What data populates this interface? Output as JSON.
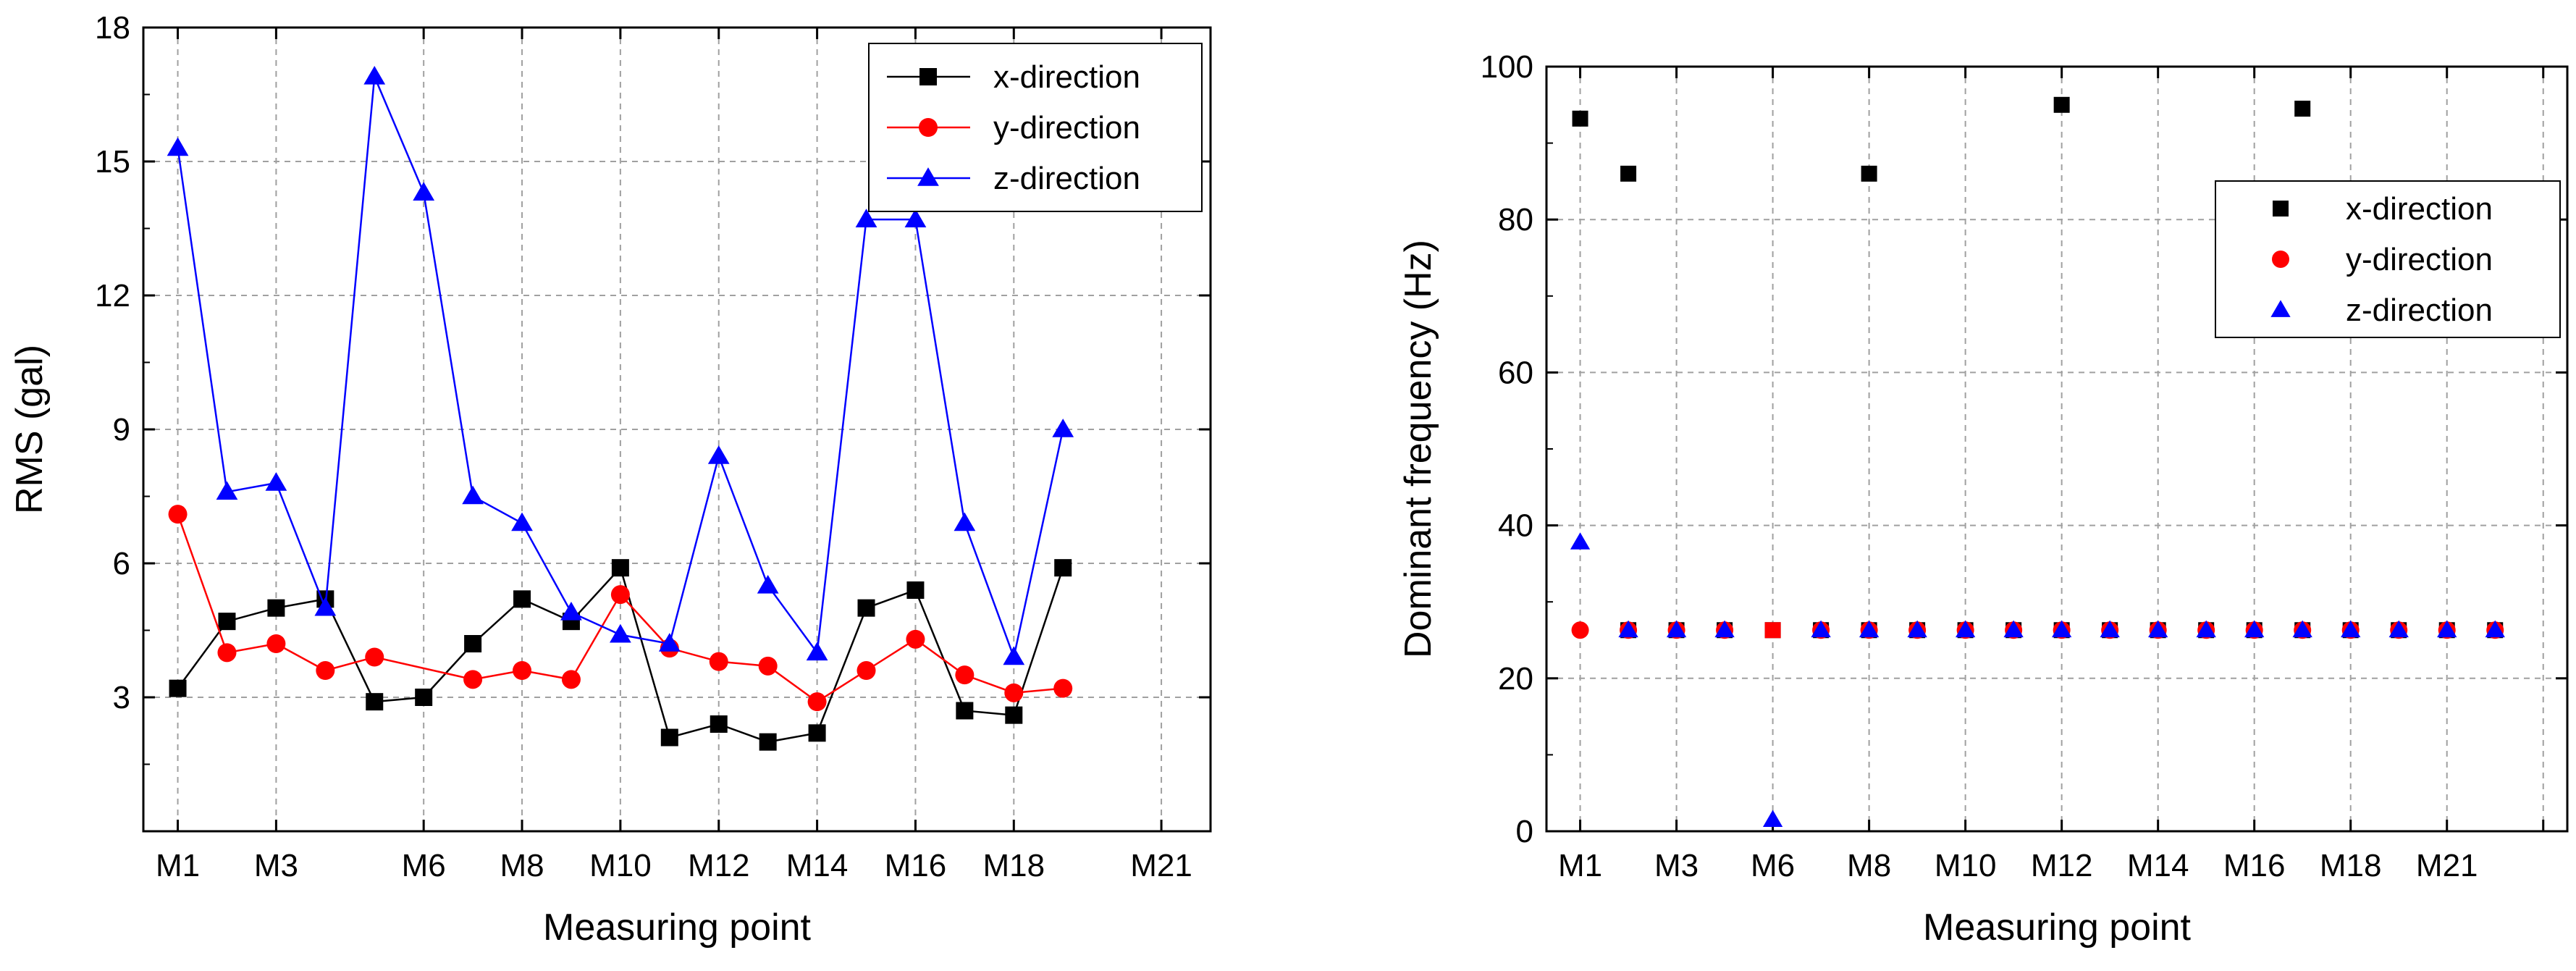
{
  "chart_data": [
    {
      "type": "line",
      "title": "",
      "xlabel": "Measuring point",
      "ylabel": "RMS (gal)",
      "ylim": [
        0,
        18
      ],
      "yticks": [
        3,
        6,
        9,
        12,
        15,
        18
      ],
      "xlim": [
        0.3,
        22
      ],
      "xticks": [
        1,
        3,
        6,
        8,
        10,
        12,
        14,
        16,
        18,
        21
      ],
      "xtick_labels": [
        "M1",
        "M3",
        "M6",
        "M8",
        "M10",
        "M12",
        "M14",
        "M16",
        "M18",
        "M21"
      ],
      "grid": true,
      "legend_position": "top-right",
      "legend": [
        "x-direction",
        "y-direction",
        "z-direction"
      ],
      "x": [
        1,
        2,
        3,
        4,
        5,
        6,
        7,
        8,
        9,
        10,
        11,
        12,
        13,
        14,
        15,
        16,
        17,
        18,
        19,
        20
      ],
      "series": [
        {
          "name": "x-direction",
          "color": "#000000",
          "marker": "square",
          "values": [
            3.2,
            4.7,
            5.0,
            5.2,
            2.9,
            3.0,
            4.2,
            5.2,
            4.7,
            5.9,
            2.1,
            2.4,
            2.0,
            2.2,
            5.0,
            5.4,
            2.7,
            2.6,
            5.9,
            null
          ]
        },
        {
          "name": "y-direction",
          "color": "#ff0000",
          "marker": "circle",
          "values": [
            7.1,
            4.0,
            4.2,
            3.6,
            3.9,
            null,
            3.4,
            3.6,
            3.4,
            5.3,
            4.1,
            3.8,
            3.7,
            2.9,
            3.6,
            4.3,
            3.5,
            3.1,
            3.2,
            null
          ]
        },
        {
          "name": "z-direction",
          "color": "#0000ff",
          "marker": "triangle",
          "values": [
            15.3,
            7.6,
            7.8,
            5.0,
            16.9,
            14.3,
            7.5,
            6.9,
            4.9,
            4.4,
            4.2,
            8.4,
            5.5,
            4.0,
            13.7,
            13.7,
            6.9,
            3.9,
            9.0,
            null
          ]
        }
      ]
    },
    {
      "type": "scatter",
      "title": "",
      "xlabel": "Measuring point",
      "ylabel": "Dominant frequency (Hz)",
      "ylim": [
        0,
        100
      ],
      "yticks": [
        0,
        20,
        40,
        60,
        80,
        100
      ],
      "xlim": [
        0.3,
        21.5
      ],
      "xticks": [
        1,
        3,
        5,
        7,
        9,
        11,
        13,
        15,
        17,
        19,
        21
      ],
      "xtick_labels": [
        "M1",
        "M3",
        "M6",
        "M8",
        "M10",
        "M12",
        "M14",
        "M16",
        "M18",
        "M21",
        ""
      ],
      "grid": true,
      "legend_position": "upper-right",
      "legend": [
        "x-direction",
        "y-direction",
        "z-direction"
      ],
      "series": [
        {
          "name": "x-direction",
          "color": "#000000",
          "marker": "square",
          "points": [
            [
              1,
              93.2
            ],
            [
              2,
              86
            ],
            [
              7,
              86
            ],
            [
              11,
              95
            ],
            [
              16,
              94.5
            ],
            [
              2,
              26.3
            ],
            [
              3,
              26.3
            ],
            [
              4,
              26.3
            ],
            [
              5,
              26.3
            ],
            [
              6,
              26.3
            ],
            [
              7,
              26.3
            ],
            [
              8,
              26.3
            ],
            [
              9,
              26.3
            ],
            [
              10,
              26.3
            ],
            [
              11,
              26.3
            ],
            [
              12,
              26.3
            ],
            [
              13,
              26.3
            ],
            [
              14,
              26.3
            ],
            [
              15,
              26.3
            ],
            [
              16,
              26.3
            ],
            [
              17,
              26.3
            ],
            [
              18,
              26.3
            ],
            [
              19,
              26.3
            ],
            [
              20,
              26.3
            ]
          ]
        },
        {
          "name": "y-direction",
          "color": "#ff0000",
          "marker": "circle",
          "points": [
            [
              1,
              26.3
            ],
            [
              2,
              26.3
            ],
            [
              3,
              26.3
            ],
            [
              4,
              26.3
            ],
            [
              6,
              26.3
            ],
            [
              7,
              26.3
            ],
            [
              8,
              26.3
            ],
            [
              9,
              26.3
            ],
            [
              10,
              26.3
            ],
            [
              11,
              26.3
            ],
            [
              12,
              26.3
            ],
            [
              13,
              26.3
            ],
            [
              14,
              26.3
            ],
            [
              15,
              26.3
            ],
            [
              16,
              26.3
            ],
            [
              17,
              26.3
            ],
            [
              18,
              26.3
            ],
            [
              19,
              26.3
            ],
            [
              20,
              26.3
            ]
          ]
        },
        {
          "name": "z-direction",
          "color": "#0000ff",
          "marker": "triangle",
          "points": [
            [
              1,
              37.8
            ],
            [
              2,
              26.3
            ],
            [
              3,
              26.3
            ],
            [
              4,
              26.3
            ],
            [
              5,
              1.5
            ],
            [
              6,
              26.3
            ],
            [
              7,
              26.3
            ],
            [
              8,
              26.3
            ],
            [
              9,
              26.3
            ],
            [
              10,
              26.3
            ],
            [
              11,
              26.3
            ],
            [
              12,
              26.3
            ],
            [
              13,
              26.3
            ],
            [
              14,
              26.3
            ],
            [
              15,
              26.3
            ],
            [
              16,
              26.3
            ],
            [
              17,
              26.3
            ],
            [
              18,
              26.3
            ],
            [
              19,
              26.3
            ],
            [
              20,
              26.3
            ]
          ]
        },
        {
          "name": "y-direction-square-at-M6",
          "color": "#ff0000",
          "marker": "square",
          "legend": false,
          "points": [
            [
              5,
              26.3
            ]
          ]
        }
      ]
    }
  ]
}
